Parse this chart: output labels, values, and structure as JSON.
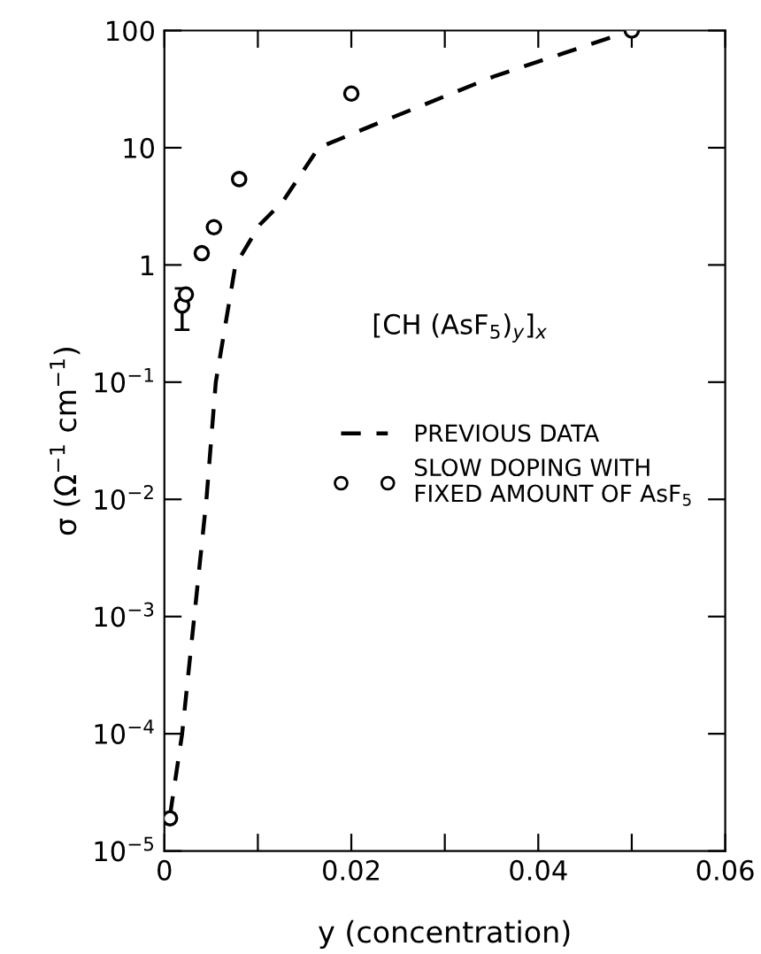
{
  "chart_data": {
    "type": "line",
    "xlabel": "y (concentration)",
    "ylabel": "σ (Ω$^{−1}$ cm$^{−1}$)",
    "log": "y",
    "xlim": [
      0,
      0.06
    ],
    "ylim": [
      1e-05,
      100
    ],
    "xticks": [
      0,
      {
        "value": 0.01,
        "label": null
      },
      0.02,
      {
        "value": 0.03,
        "label": null
      },
      0.04,
      {
        "value": 0.05,
        "label": null
      },
      0.06
    ],
    "yticks": [
      {
        "value": 1e-05,
        "label": "10$^{−5}$"
      },
      {
        "value": 0.0001,
        "label": "10$^{−4}$"
      },
      {
        "value": 0.001,
        "label": "10$^{−3}$"
      },
      {
        "value": 0.01,
        "label": "10$^{−2}$"
      },
      {
        "value": 0.1,
        "label": "10$^{−1}$"
      },
      1,
      10,
      100
    ],
    "grid": false,
    "legend": "right",
    "annotations": [
      "[CH (AsF$_{5}$)$_{y}$]$_{x}$"
    ],
    "series": [
      {
        "name": "PREVIOUS DATA",
        "line_style": "dashed",
        "marker": "none",
        "color": "#000000",
        "x": [
          0.0006,
          0.0019,
          0.0032,
          0.0045,
          0.0055,
          0.0076,
          0.0102,
          0.0127,
          0.0165,
          0.0227,
          0.0354,
          0.05
        ],
        "values": [
          2e-05,
          0.0001,
          0.001,
          0.01,
          0.1,
          1,
          2.2,
          3.5,
          10,
          16,
          41,
          100
        ]
      },
      {
        "name": "SLOW DOPING WITH\nFIXED AMOUNT OF AsF$_{5}$",
        "type": "scatter",
        "marker": "circle",
        "color": "#000000",
        "x": [
          0.0006,
          0.0019,
          0.0023,
          0.004,
          0.0053,
          0.008,
          0.02,
          0.05
        ],
        "values": [
          1.9e-05,
          0.45,
          0.56,
          1.26,
          2.1,
          5.4,
          29,
          100
        ],
        "errors": [
          null,
          [
            0.28,
            0.63
          ],
          null,
          null,
          null,
          null,
          null,
          null
        ]
      }
    ]
  }
}
